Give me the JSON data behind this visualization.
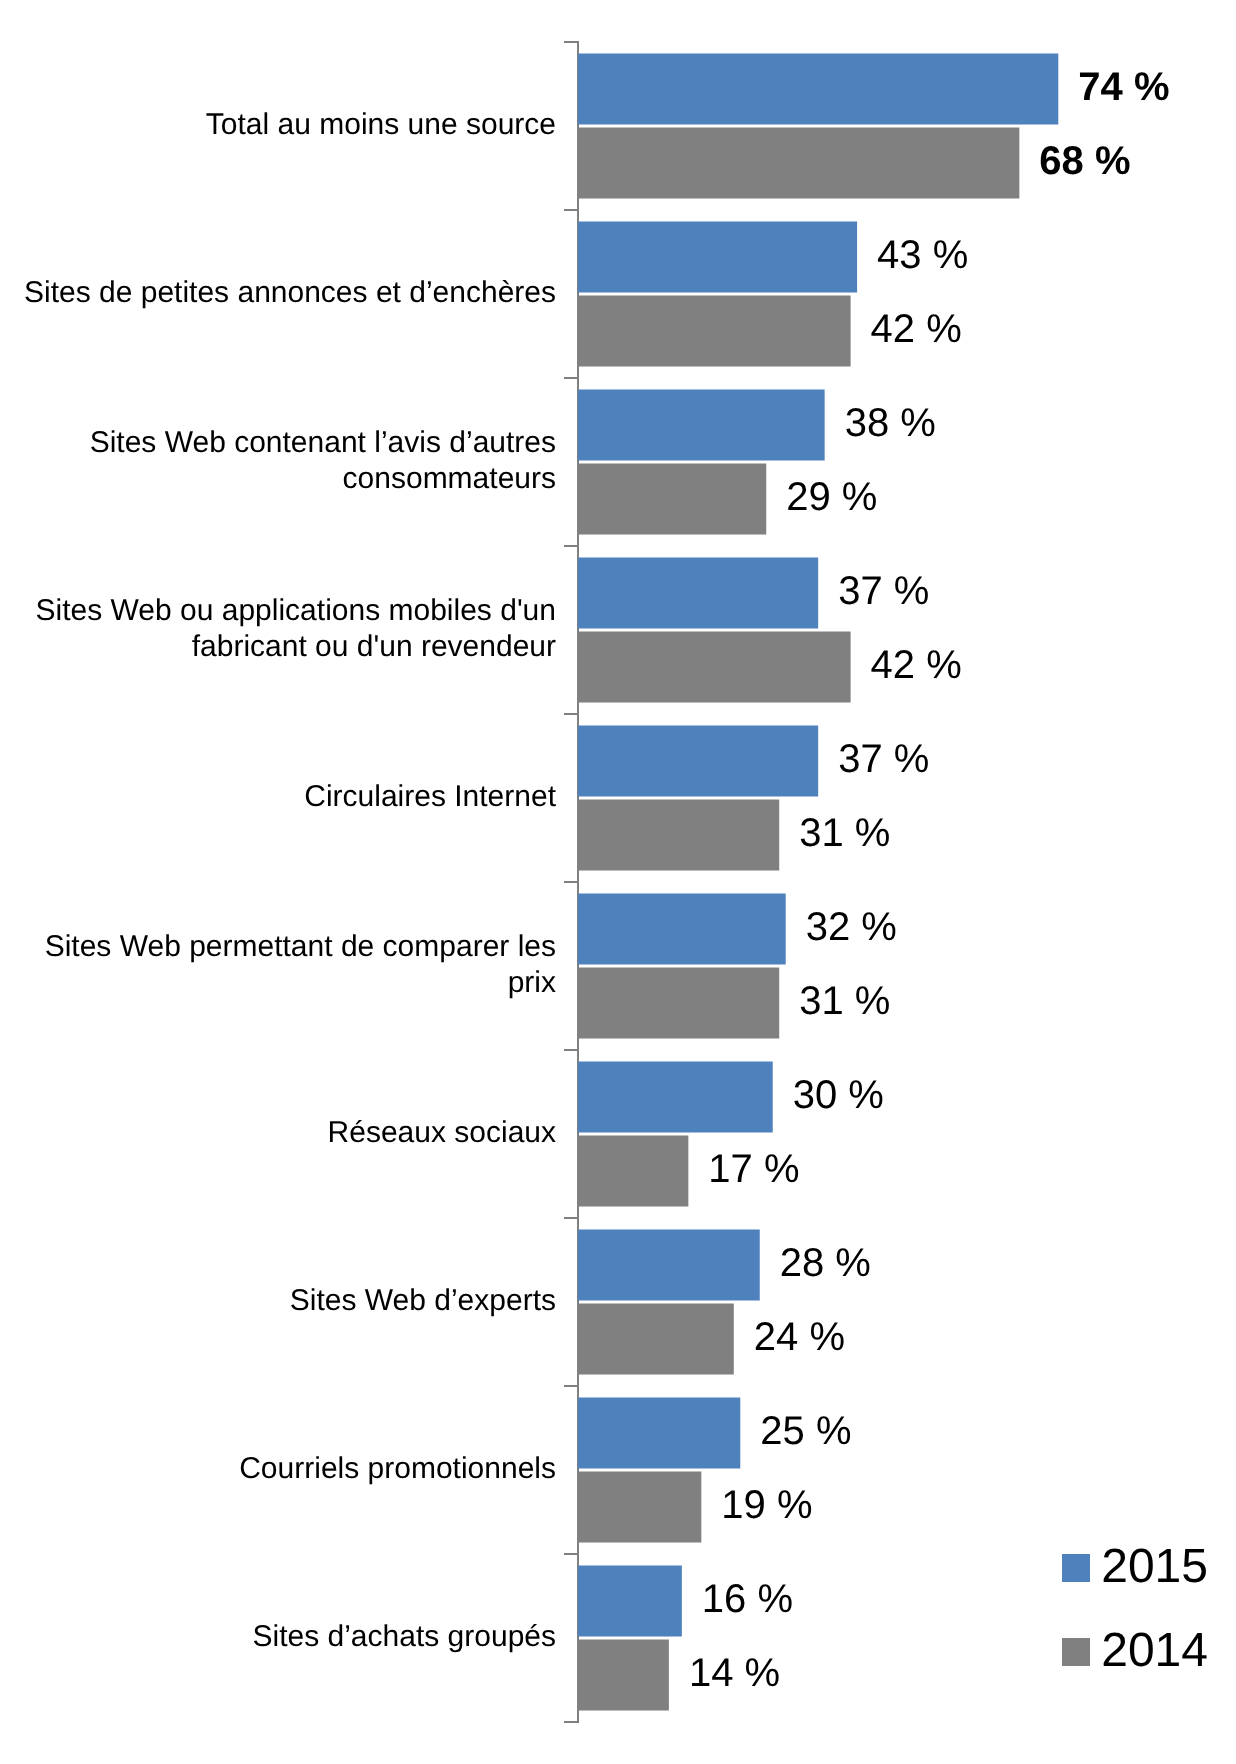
{
  "chart_data": {
    "type": "bar",
    "orientation": "horizontal",
    "categories": [
      "Total au moins une source",
      "Sites de petites annonces et d’enchères",
      "Sites Web contenant l’avis d’autres consommateurs",
      "Sites Web ou applications mobiles d'un fabricant ou d'un revendeur",
      "Circulaires Internet",
      "Sites Web permettant de comparer les prix",
      "Réseaux sociaux",
      "Sites Web d’experts",
      "Courriels promotionnels",
      "Sites d’achats groupés"
    ],
    "series": [
      {
        "name": "2015",
        "color": "#4f81bd",
        "values": [
          74,
          43,
          38,
          37,
          37,
          32,
          30,
          28,
          25,
          16
        ],
        "value_labels": [
          "74 %",
          "43 %",
          "38 %",
          "37 %",
          "37 %",
          "32 %",
          "30 %",
          "28 %",
          "25 %",
          "16 %"
        ]
      },
      {
        "name": "2014",
        "color": "#808080",
        "values": [
          68,
          42,
          29,
          42,
          31,
          31,
          17,
          24,
          19,
          14
        ],
        "value_labels": [
          "68 %",
          "42 %",
          "29 %",
          "42 %",
          "31 %",
          "31 %",
          "17 %",
          "24 %",
          "19 %",
          "14 %"
        ]
      }
    ],
    "legend": "bottom right"
  }
}
